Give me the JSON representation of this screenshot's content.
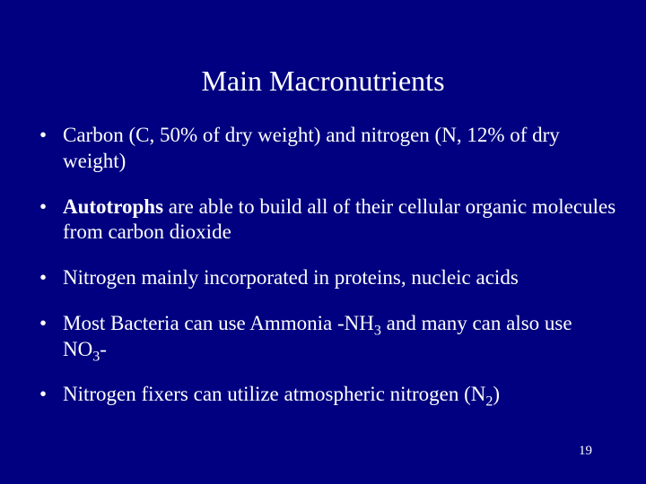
{
  "slide": {
    "title": "Main Macronutrients",
    "background_color": "#000080",
    "text_color": "#ffffff",
    "title_fontsize": 32,
    "body_fontsize": 23,
    "font_family": "Times New Roman",
    "bullets": [
      {
        "text_parts": [
          {
            "t": "Carbon (C, 50% of dry weight) and nitrogen (N, 12% of dry weight)"
          }
        ]
      },
      {
        "text_parts": [
          {
            "t": "Autotrophs",
            "bold": true
          },
          {
            "t": " are able to build all of their cellular organic molecules from carbon dioxide"
          }
        ]
      },
      {
        "text_parts": [
          {
            "t": "Nitrogen mainly incorporated in proteins, nucleic acids"
          }
        ]
      },
      {
        "text_parts": [
          {
            "t": "Most Bacteria can use Ammonia -NH"
          },
          {
            "t": "3",
            "sub": true
          },
          {
            "t": "  and many can also use  NO"
          },
          {
            "t": "3",
            "sub": true
          },
          {
            "t": "-"
          }
        ]
      },
      {
        "text_parts": [
          {
            "t": "Nitrogen fixers can utilize atmospheric nitrogen (N"
          },
          {
            "t": "2",
            "sub": true
          },
          {
            "t": ")"
          }
        ]
      }
    ],
    "page_number": "19"
  }
}
